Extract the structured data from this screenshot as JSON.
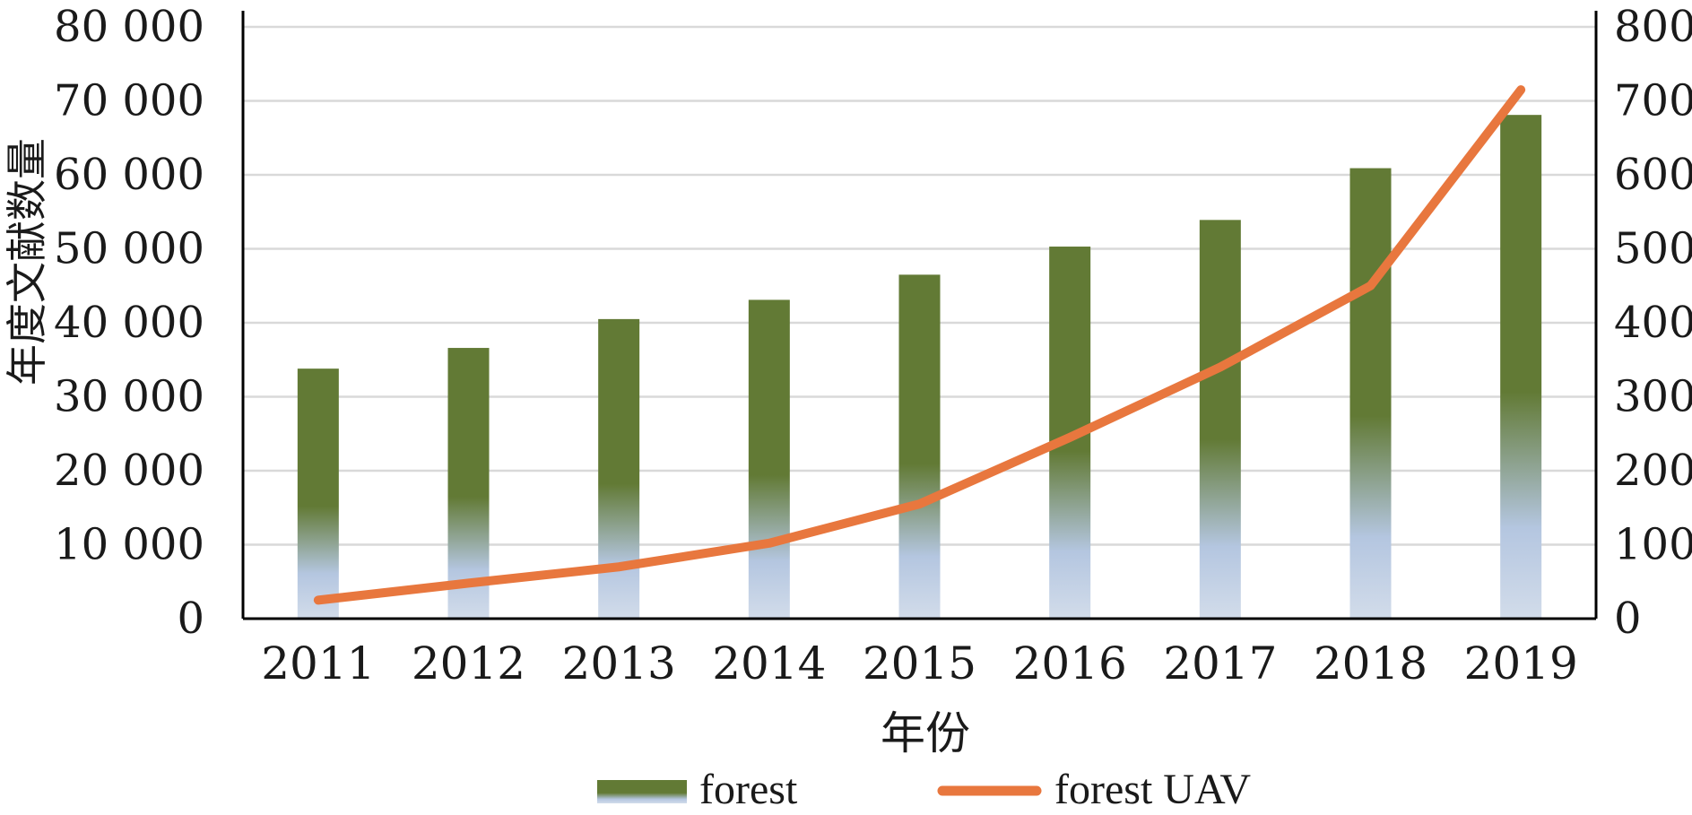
{
  "chart_data": {
    "type": "bar",
    "categories": [
      "2011",
      "2012",
      "2013",
      "2014",
      "2015",
      "2016",
      "2017",
      "2018",
      "2019"
    ],
    "series": [
      {
        "name": "forest",
        "type": "bar",
        "axis": "left",
        "values": [
          33800,
          36600,
          40500,
          43100,
          46500,
          50300,
          53900,
          60900,
          68100
        ],
        "color": "#627a35",
        "gradient_bottom_color": "#b4c6e0"
      },
      {
        "name": "forest UAV",
        "type": "line",
        "axis": "right",
        "values": [
          25,
          48,
          70,
          102,
          155,
          245,
          340,
          450,
          715
        ],
        "color": "#e8773e"
      }
    ],
    "ylabel": "年度文献数量",
    "xlabel": "年份",
    "ylim": [
      0,
      80000
    ],
    "y2lim": [
      0,
      800
    ],
    "yticks": [
      "0",
      "10 000",
      "20 000",
      "30 000",
      "40 000",
      "50 000",
      "60 000",
      "70 000",
      "80 000"
    ],
    "y2ticks": [
      "0",
      "100",
      "200",
      "300",
      "400",
      "500",
      "600",
      "700",
      "800"
    ],
    "grid": true,
    "legend": "bottom"
  }
}
